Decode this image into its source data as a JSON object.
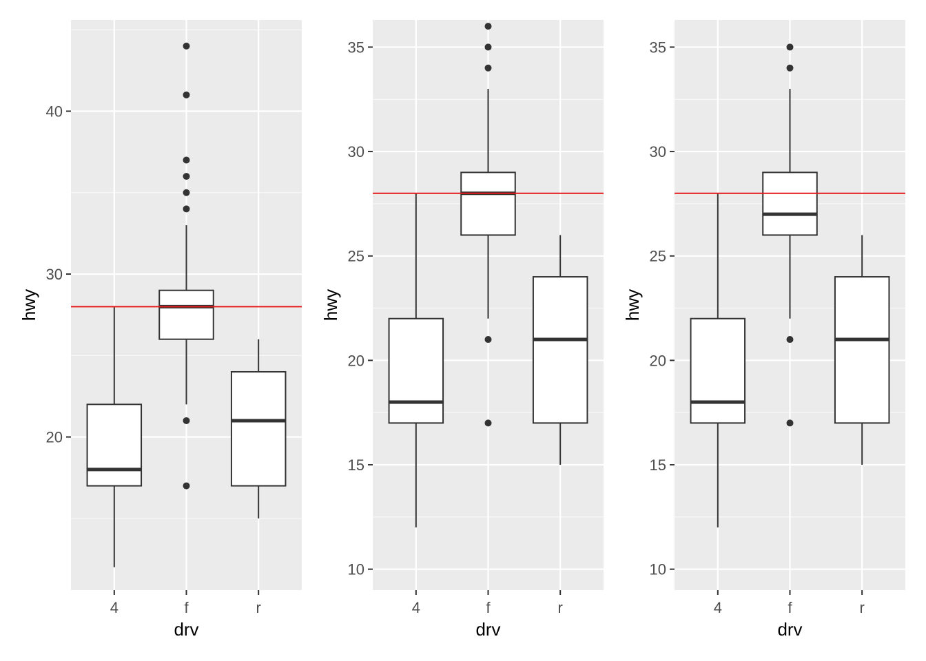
{
  "colors": {
    "panel_background": "#ebebeb",
    "grid_major": "#ffffff",
    "box_line": "#333333",
    "box_fill": "#ffffff",
    "outlier": "#333333",
    "reference_line": "#e41a1c",
    "tick_label": "#4d4d4d",
    "axis_title": "#000000"
  },
  "chart_data": [
    {
      "type": "boxplot",
      "xlabel": "drv",
      "ylabel": "hwy",
      "categories": [
        "4",
        "f",
        "r"
      ],
      "ylim": [
        10.6,
        45.6
      ],
      "yticks": [
        20,
        30,
        40
      ],
      "ytick_labels": [
        "20",
        "30",
        "40"
      ],
      "grid": true,
      "hline": 28,
      "boxes": [
        {
          "category": "4",
          "whisker_low": 12,
          "q1": 17,
          "median": 18,
          "q3": 22,
          "whisker_high": 28,
          "outliers": []
        },
        {
          "category": "f",
          "whisker_low": 22,
          "q1": 26,
          "median": 28,
          "q3": 29,
          "whisker_high": 33,
          "outliers": [
            17,
            21,
            34,
            35,
            36,
            37,
            41,
            44
          ]
        },
        {
          "category": "r",
          "whisker_low": 15,
          "q1": 17,
          "median": 21,
          "q3": 24,
          "whisker_high": 26,
          "outliers": []
        }
      ]
    },
    {
      "type": "boxplot",
      "xlabel": "drv",
      "ylabel": "hwy",
      "categories": [
        "4",
        "f",
        "r"
      ],
      "ylim": [
        9.0,
        36.3
      ],
      "yticks": [
        10,
        15,
        20,
        25,
        30,
        35
      ],
      "ytick_labels": [
        "10",
        "15",
        "20",
        "25",
        "30",
        "35"
      ],
      "grid": true,
      "hline": 28,
      "boxes": [
        {
          "category": "4",
          "whisker_low": 12,
          "q1": 17,
          "median": 18,
          "q3": 22,
          "whisker_high": 28,
          "outliers": []
        },
        {
          "category": "f",
          "whisker_low": 22,
          "q1": 26,
          "median": 28,
          "q3": 29,
          "whisker_high": 33,
          "outliers": [
            17,
            21,
            34,
            35,
            36
          ]
        },
        {
          "category": "r",
          "whisker_low": 15,
          "q1": 17,
          "median": 21,
          "q3": 24,
          "whisker_high": 26,
          "outliers": []
        }
      ]
    },
    {
      "type": "boxplot",
      "xlabel": "drv",
      "ylabel": "hwy",
      "categories": [
        "4",
        "f",
        "r"
      ],
      "ylim": [
        9.0,
        36.3
      ],
      "yticks": [
        10,
        15,
        20,
        25,
        30,
        35
      ],
      "ytick_labels": [
        "10",
        "15",
        "20",
        "25",
        "30",
        "35"
      ],
      "grid": true,
      "hline": 28,
      "boxes": [
        {
          "category": "4",
          "whisker_low": 12,
          "q1": 17,
          "median": 18,
          "q3": 22,
          "whisker_high": 28,
          "outliers": []
        },
        {
          "category": "f",
          "whisker_low": 22,
          "q1": 26,
          "median": 27,
          "q3": 29,
          "whisker_high": 33,
          "outliers": [
            17,
            21,
            34,
            35
          ]
        },
        {
          "category": "r",
          "whisker_low": 15,
          "q1": 17,
          "median": 21,
          "q3": 24,
          "whisker_high": 26,
          "outliers": []
        }
      ]
    }
  ]
}
